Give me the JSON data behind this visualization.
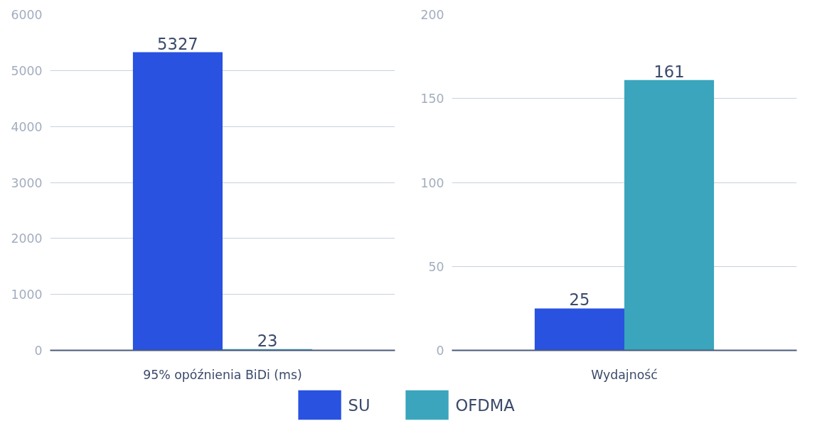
{
  "chart_data": [
    {
      "type": "bar",
      "categories": [
        "95% opóźnienia BiDi (ms)"
      ],
      "ylim": [
        0,
        6000
      ],
      "yticks": [
        0,
        1000,
        2000,
        3000,
        4000,
        5000,
        6000
      ],
      "grid": "y",
      "data_labels": true,
      "legend": "bottom",
      "series": [
        {
          "name": "SU",
          "color": "#2952e0",
          "values": [
            5327
          ]
        },
        {
          "name": "OFDMA",
          "color": "#3aa5bd",
          "values": [
            23
          ]
        }
      ]
    },
    {
      "type": "bar",
      "categories": [
        "Wydajność"
      ],
      "ylim": [
        0,
        200
      ],
      "yticks": [
        0,
        50,
        100,
        150,
        200
      ],
      "grid": "y",
      "data_labels": true,
      "legend": "bottom",
      "series": [
        {
          "name": "SU",
          "color": "#2952e0",
          "values": [
            25
          ]
        },
        {
          "name": "OFDMA",
          "color": "#3aa5bd",
          "values": [
            161
          ]
        }
      ]
    }
  ]
}
